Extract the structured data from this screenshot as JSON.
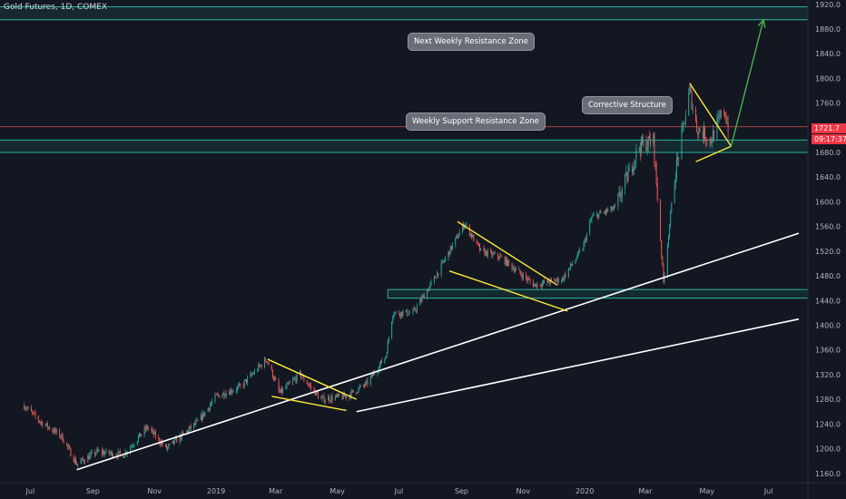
{
  "header": {
    "title": "Gold Futures, 1D, COMEX"
  },
  "annotations": {
    "next_resistance": "Next Weekly Resistance Zone",
    "support_resistance": "Weekly Support Resistance Zone",
    "corrective": "Corrective Structure"
  },
  "price_badge": {
    "price": "1721.7",
    "countdown": "09:17:37",
    "color": "#f23645"
  },
  "colors": {
    "background": "#131722",
    "up": "#26a69a",
    "down": "#ef5350",
    "zone": "#2bb3a0",
    "triangle": "#ffeb3b",
    "trendline": "#ffffff",
    "arrow": "#4caf50",
    "current_price_line": "#ef5350"
  },
  "chart_data": {
    "type": "candlestick",
    "title": "Gold Futures, 1D, COMEX",
    "x_tick_labels": [
      "Jul",
      "Sep",
      "Nov",
      "2019",
      "Mar",
      "May",
      "Jul",
      "Sep",
      "Nov",
      "2020",
      "Mar",
      "May",
      "Jul"
    ],
    "y_tick_labels": [
      1160,
      1200,
      1240,
      1280,
      1320,
      1360,
      1400,
      1440,
      1480,
      1520,
      1560,
      1600,
      1640,
      1680,
      1720,
      1760,
      1800,
      1840,
      1880,
      1920
    ],
    "ylim": [
      1145,
      1927
    ],
    "grid": false,
    "price_path": [
      [
        "2018-06-25",
        1270
      ],
      [
        "2018-07-10",
        1245
      ],
      [
        "2018-08-01",
        1220
      ],
      [
        "2018-08-16",
        1175
      ],
      [
        "2018-09-05",
        1195
      ],
      [
        "2018-10-01",
        1190
      ],
      [
        "2018-10-25",
        1235
      ],
      [
        "2018-11-13",
        1200
      ],
      [
        "2018-12-15",
        1245
      ],
      [
        "2019-01-01",
        1285
      ],
      [
        "2019-01-25",
        1300
      ],
      [
        "2019-02-20",
        1345
      ],
      [
        "2019-03-05",
        1290
      ],
      [
        "2019-03-25",
        1320
      ],
      [
        "2019-04-15",
        1280
      ],
      [
        "2019-05-10",
        1285
      ],
      [
        "2019-05-30",
        1305
      ],
      [
        "2019-06-18",
        1350
      ],
      [
        "2019-06-25",
        1420
      ],
      [
        "2019-07-15",
        1420
      ],
      [
        "2019-08-05",
        1475
      ],
      [
        "2019-09-04",
        1565
      ],
      [
        "2019-09-20",
        1520
      ],
      [
        "2019-10-10",
        1510
      ],
      [
        "2019-11-12",
        1465
      ],
      [
        "2019-12-10",
        1475
      ],
      [
        "2019-12-30",
        1525
      ],
      [
        "2020-01-08",
        1575
      ],
      [
        "2020-01-31",
        1590
      ],
      [
        "2020-02-24",
        1690
      ],
      [
        "2020-03-09",
        1700
      ],
      [
        "2020-03-19",
        1470
      ],
      [
        "2020-03-30",
        1640
      ],
      [
        "2020-04-14",
        1780
      ],
      [
        "2020-04-21",
        1720
      ],
      [
        "2020-05-05",
        1700
      ],
      [
        "2020-05-18",
        1750
      ],
      [
        "2020-05-22",
        1721.7
      ]
    ],
    "zones": [
      {
        "label": "Next Weekly Resistance Zone",
        "from": 1895,
        "to": 1916
      },
      {
        "label": "Weekly Support Resistance Zone",
        "from": 1680,
        "to": 1700
      },
      {
        "from": 1444,
        "to": 1458,
        "start": "2019-06-20"
      }
    ],
    "current_price": 1721.7,
    "countdown": "09:17:37",
    "trendlines": [
      {
        "from": [
          "2018-08-16",
          1166
        ],
        "to": [
          "2020-07-31",
          1549
        ]
      },
      {
        "from": [
          "2019-05-20",
          1260
        ],
        "to": [
          "2020-07-31",
          1410
        ]
      }
    ],
    "triangles": [
      {
        "points": [
          [
            "2019-02-21",
            1345
          ],
          [
            "2019-05-20",
            1280
          ],
          [
            "2019-02-25",
            1285
          ],
          [
            "2019-05-10",
            1262
          ]
        ]
      },
      {
        "points": [
          [
            "2019-08-28",
            1568
          ],
          [
            "2019-12-05",
            1465
          ],
          [
            "2019-08-20",
            1488
          ],
          [
            "2019-12-15",
            1423
          ]
        ]
      },
      {
        "points": [
          [
            "2020-04-14",
            1792
          ],
          [
            "2020-05-25",
            1690
          ],
          [
            "2020-05-25",
            1690
          ],
          [
            "2020-04-20",
            1665
          ]
        ]
      }
    ],
    "projection_arrow": {
      "from": [
        "2020-05-25",
        1690
      ],
      "to": [
        "2020-06-26",
        1895
      ]
    }
  }
}
